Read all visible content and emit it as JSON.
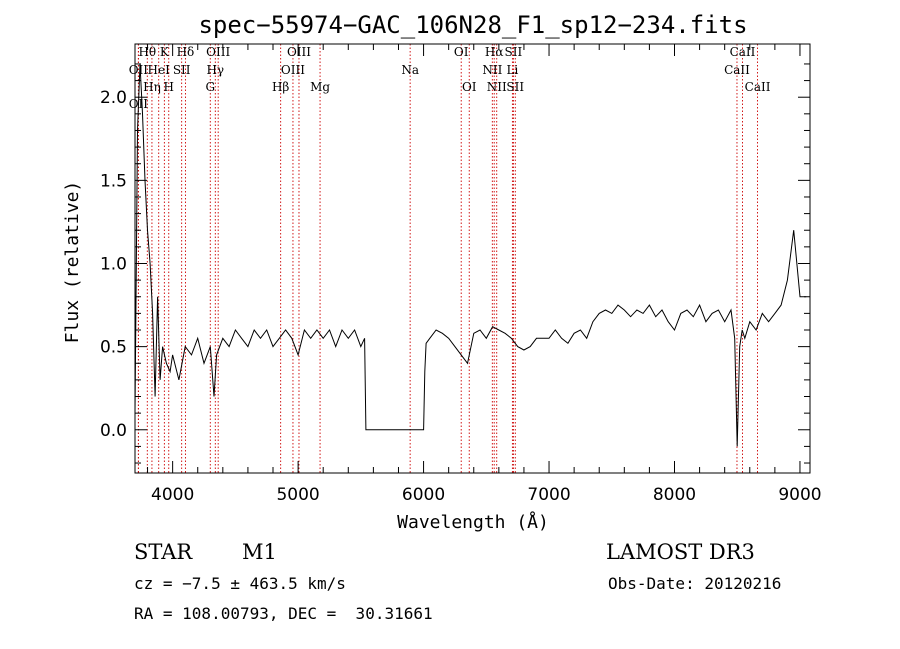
{
  "chart_data": {
    "type": "line",
    "title": "spec−55974−GAC_106N28_F1_sp12−234.fits",
    "xlabel": "Wavelength (Å)",
    "ylabel": "Flux (relative)",
    "xlim": [
      3700,
      9080
    ],
    "ylim": [
      -0.26,
      2.32
    ],
    "xticks": [
      4000,
      5000,
      6000,
      7000,
      8000,
      9000
    ],
    "yticks": [
      0.0,
      0.5,
      1.0,
      1.5,
      2.0
    ],
    "ytick_labels": [
      "0.0",
      "0.5",
      "1.0",
      "1.5",
      "2.0"
    ],
    "grid": false,
    "series": [
      {
        "x": [
          3700,
          3720,
          3740,
          3760,
          3780,
          3800,
          3820,
          3840,
          3860,
          3880,
          3900,
          3920,
          3950,
          3980,
          4000,
          4050,
          4100,
          4150,
          4200,
          4250,
          4300,
          4330,
          4350,
          4400,
          4450,
          4500,
          4550,
          4600,
          4650,
          4700,
          4750,
          4800,
          4850,
          4900,
          4950,
          5000,
          5050,
          5100,
          5150,
          5200,
          5250,
          5300,
          5350,
          5400,
          5450,
          5500,
          5530,
          5540,
          5600,
          5700,
          5800,
          5900,
          6000,
          6010,
          6020,
          6050,
          6100,
          6150,
          6200,
          6250,
          6300,
          6350,
          6400,
          6450,
          6500,
          6550,
          6600,
          6650,
          6700,
          6750,
          6800,
          6850,
          6900,
          6950,
          7000,
          7050,
          7100,
          7150,
          7200,
          7250,
          7300,
          7350,
          7400,
          7450,
          7500,
          7550,
          7600,
          7650,
          7700,
          7750,
          7800,
          7850,
          7900,
          7950,
          8000,
          8050,
          8100,
          8150,
          8200,
          8250,
          8300,
          8350,
          8400,
          8450,
          8480,
          8500,
          8520,
          8540,
          8560,
          8600,
          8650,
          8700,
          8750,
          8800,
          8850,
          8900,
          8950,
          9000,
          9050
        ],
        "y": [
          0.1,
          1.8,
          2.2,
          1.9,
          1.5,
          1.2,
          1.0,
          0.7,
          0.2,
          0.8,
          0.3,
          0.5,
          0.4,
          0.35,
          0.45,
          0.3,
          0.5,
          0.45,
          0.55,
          0.4,
          0.5,
          0.2,
          0.45,
          0.55,
          0.5,
          0.6,
          0.55,
          0.5,
          0.6,
          0.55,
          0.6,
          0.5,
          0.55,
          0.6,
          0.55,
          0.45,
          0.6,
          0.55,
          0.6,
          0.55,
          0.6,
          0.5,
          0.6,
          0.55,
          0.6,
          0.5,
          0.55,
          0.0,
          0.0,
          0.0,
          0.0,
          0.0,
          0.0,
          0.35,
          0.52,
          0.55,
          0.6,
          0.58,
          0.55,
          0.5,
          0.45,
          0.4,
          0.58,
          0.6,
          0.55,
          0.62,
          0.6,
          0.58,
          0.55,
          0.5,
          0.48,
          0.5,
          0.55,
          0.55,
          0.55,
          0.6,
          0.55,
          0.52,
          0.58,
          0.6,
          0.55,
          0.65,
          0.7,
          0.72,
          0.7,
          0.75,
          0.72,
          0.68,
          0.72,
          0.7,
          0.75,
          0.68,
          0.72,
          0.65,
          0.6,
          0.7,
          0.72,
          0.68,
          0.75,
          0.65,
          0.7,
          0.72,
          0.65,
          0.72,
          0.55,
          -0.1,
          0.5,
          0.6,
          0.55,
          0.65,
          0.6,
          0.7,
          0.65,
          0.7,
          0.75,
          0.9,
          1.2,
          0.8,
          0.8
        ]
      }
    ],
    "spectral_lines": [
      {
        "label": "OII",
        "wavelength": 3727,
        "row": 1
      },
      {
        "label": "OII",
        "wavelength": 3727,
        "row": 3
      },
      {
        "label": "Hθ",
        "wavelength": 3798,
        "row": 0
      },
      {
        "label": "Hη",
        "wavelength": 3835,
        "row": 2
      },
      {
        "label": "HeI",
        "wavelength": 3889,
        "row": 1
      },
      {
        "label": "K",
        "wavelength": 3934,
        "row": 0
      },
      {
        "label": "H",
        "wavelength": 3969,
        "row": 2
      },
      {
        "label": "SII",
        "wavelength": 4072,
        "row": 1
      },
      {
        "label": "Hδ",
        "wavelength": 4102,
        "row": 0
      },
      {
        "label": "G",
        "wavelength": 4300,
        "row": 2
      },
      {
        "label": "Hγ",
        "wavelength": 4340,
        "row": 1
      },
      {
        "label": "OIII",
        "wavelength": 4363,
        "row": 0
      },
      {
        "label": "Hβ",
        "wavelength": 4861,
        "row": 2
      },
      {
        "label": "OIII",
        "wavelength": 4959,
        "row": 1
      },
      {
        "label": "OIII",
        "wavelength": 5007,
        "row": 0
      },
      {
        "label": "Mg",
        "wavelength": 5175,
        "row": 2
      },
      {
        "label": "Na",
        "wavelength": 5893,
        "row": 1
      },
      {
        "label": "OI",
        "wavelength": 6300,
        "row": 0
      },
      {
        "label": "OI",
        "wavelength": 6364,
        "row": 2
      },
      {
        "label": "NII",
        "wavelength": 6548,
        "row": 1
      },
      {
        "label": "Hα",
        "wavelength": 6563,
        "row": 0
      },
      {
        "label": "NII",
        "wavelength": 6583,
        "row": 2
      },
      {
        "label": "Li",
        "wavelength": 6708,
        "row": 1
      },
      {
        "label": "SII",
        "wavelength": 6716,
        "row": 0
      },
      {
        "label": "SII",
        "wavelength": 6731,
        "row": 2
      },
      {
        "label": "CaII",
        "wavelength": 8498,
        "row": 1
      },
      {
        "label": "CaII",
        "wavelength": 8542,
        "row": 0
      },
      {
        "label": "CaII",
        "wavelength": 8662,
        "row": 2
      }
    ],
    "colors": {
      "spectrum": "#000000",
      "lines": "#cc0000",
      "axes": "#000000"
    }
  },
  "info": {
    "object_class": "STAR",
    "subclass": "M1",
    "survey": "LAMOST DR3",
    "redshift": "cz = −7.5 ± 463.5 km/s",
    "obs_date": "Obs-Date: 20120216",
    "coords": "RA = 108.00793, DEC =  30.31661"
  }
}
